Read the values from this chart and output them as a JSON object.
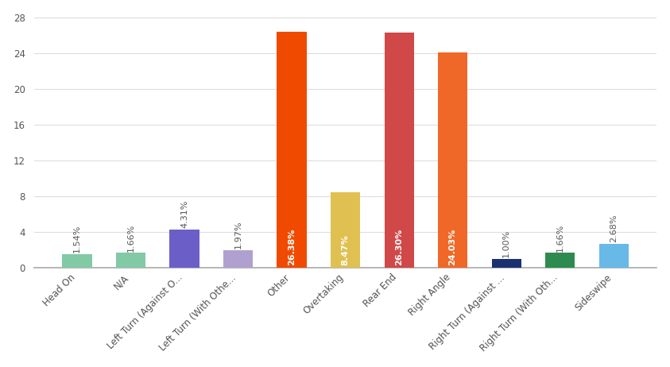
{
  "categories": [
    "Head On",
    "N/A",
    "Left Turn (Against O...",
    "Left Turn (With Othe...",
    "Other",
    "Overtaking",
    "Rear End",
    "Right Angle",
    "Right Turn (Against ...",
    "Right Turn (With Oth...",
    "Sideswipe"
  ],
  "values": [
    1.54,
    1.66,
    4.31,
    1.97,
    26.38,
    8.47,
    26.3,
    24.03,
    1.0,
    1.66,
    2.68
  ],
  "labels": [
    "1.54%",
    "1.66%",
    "4.31%",
    "1.97%",
    "26.38%",
    "8.47%",
    "26.30%",
    "24.03%",
    "1.00%",
    "1.66%",
    "2.68%"
  ],
  "colors": [
    "#82c9a5",
    "#82c9a5",
    "#6b5fc7",
    "#b0a0d0",
    "#f04a00",
    "#e0c050",
    "#d04848",
    "#f06828",
    "#1a3070",
    "#2e8b50",
    "#68b8e8"
  ],
  "label_colors_inside": [
    "white",
    "white",
    "white",
    "white",
    "white",
    "white",
    "white",
    "white",
    "white",
    "white",
    "white"
  ],
  "label_colors_outside": [
    "#666666",
    "#666666",
    "#6b5fc7",
    "#888888",
    "#ffffff",
    "#888888",
    "#ffffff",
    "#ffffff",
    "#666666",
    "#666666",
    "#666666"
  ],
  "ylim": [
    0,
    28
  ],
  "yticks": [
    0,
    4,
    8,
    12,
    16,
    20,
    24,
    28
  ],
  "background_color": "#ffffff",
  "grid_color": "#dddddd",
  "label_fontsize": 8,
  "tick_fontsize": 8.5,
  "bar_width": 0.55,
  "inside_threshold": 5
}
